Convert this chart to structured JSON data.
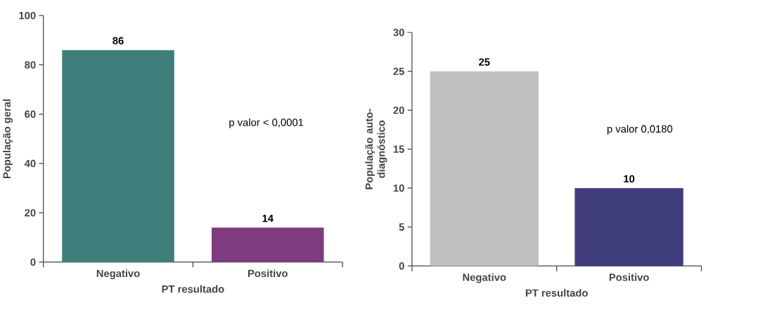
{
  "chart_data": [
    {
      "type": "bar",
      "categories": [
        "Negativo",
        "Positivo"
      ],
      "values": [
        86,
        14
      ],
      "colors": [
        "#3d7e7a",
        "#7e3c7e"
      ],
      "ylim": [
        0,
        100
      ],
      "yticks": [
        0,
        20,
        40,
        60,
        80,
        100
      ],
      "xlabel": "PT resultado",
      "ylabel": "População geral",
      "data_labels": true,
      "annotations": [
        "p valor < 0,0001"
      ]
    },
    {
      "type": "bar",
      "categories": [
        "Negativo",
        "Positivo"
      ],
      "values": [
        25,
        10
      ],
      "colors": [
        "#bfbfbf",
        "#3f3d7b"
      ],
      "ylim": [
        0,
        30
      ],
      "yticks": [
        0,
        5,
        10,
        15,
        20,
        25,
        30
      ],
      "xlabel": "PT resultado",
      "ylabel": "População auto-diagnóstico",
      "data_labels": true,
      "annotations": [
        "p valor 0,0180"
      ]
    }
  ]
}
